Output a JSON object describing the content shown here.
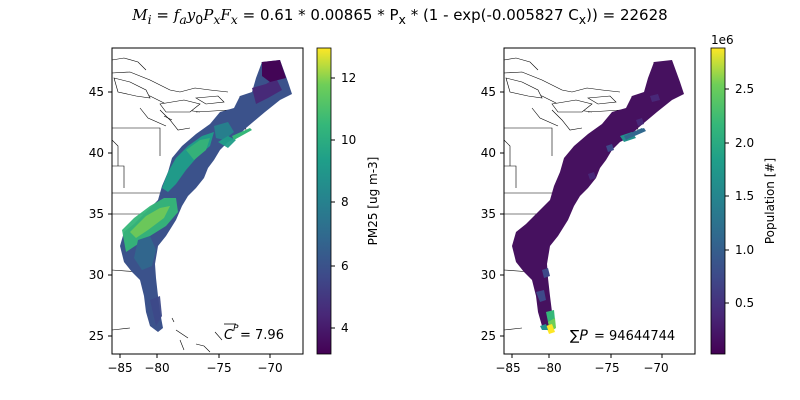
{
  "figure": {
    "suptitle": "M_i = f_a y_0 P_x F_x = 0.61 * 0.00865 * P_x * (1 - exp(-0.005827 C_x)) = 22628",
    "suptitle_parts": {
      "lhs_M": "M",
      "lhs_i": "i",
      "eq1": " = ",
      "fa_f": "f",
      "fa_a": "a",
      "y0_y": "y",
      "y0_0": "0",
      "px_P": "P",
      "px_x": "x",
      "fx_F": "F",
      "fx_x": "x",
      "rest1": " = 0.61 * 0.00865 * P",
      "px2_x": "x",
      "rest2": " * (1 - exp(-0.005827 C",
      "cx_x": "x",
      "rest3": ")) = 22628"
    }
  },
  "maps": [
    {
      "name": "pm25",
      "xticks": [
        "−85",
        "−80",
        "−75",
        "−70"
      ],
      "yticks": [
        "45",
        "40",
        "35",
        "30",
        "25"
      ],
      "annotation": {
        "label": "C",
        "sup": "P",
        "value": " = 7.96"
      },
      "colorbar": {
        "label": "PM25 [ug m-3]",
        "ticks": [
          "12",
          "10",
          "8",
          "6",
          "4"
        ],
        "range": [
          3.2,
          12.9
        ],
        "offset_label": ""
      }
    },
    {
      "name": "population",
      "xticks": [
        "−85",
        "−80",
        "−75",
        "−70"
      ],
      "yticks": [
        "45",
        "40",
        "35",
        "30",
        "25"
      ],
      "annotation": {
        "label": "∑P",
        "value": " = 94644744"
      },
      "colorbar": {
        "label": "Population [#]",
        "ticks": [
          "2.5",
          "2.0",
          "1.5",
          "1.0",
          "0.5"
        ],
        "range": [
          0.0,
          2.85
        ],
        "offset_label": "1e6"
      }
    }
  ],
  "colormap": "viridis",
  "colors": {
    "viridis_low": "#440154",
    "viridis_mid": "#21918c",
    "viridis_high": "#fde725"
  }
}
